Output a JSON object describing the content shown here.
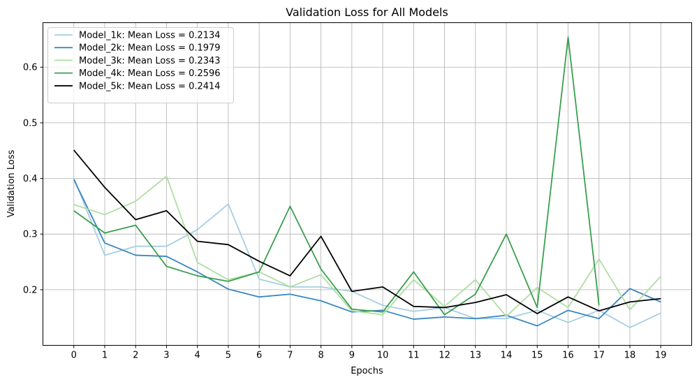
{
  "chart_data": {
    "type": "line",
    "title": "Validation Loss for All Models",
    "xlabel": "Epochs",
    "ylabel": "Validation Loss",
    "x": [
      0,
      1,
      2,
      3,
      4,
      5,
      6,
      7,
      8,
      9,
      10,
      11,
      12,
      13,
      14,
      15,
      16,
      17,
      18,
      19
    ],
    "xlim": [
      -1,
      20
    ],
    "ylim": [
      0.1,
      0.68
    ],
    "yticks": [
      0.2,
      0.3,
      0.4,
      0.5,
      0.6
    ],
    "ytick_labels": [
      "0.2",
      "0.3",
      "0.4",
      "0.5",
      "0.6"
    ],
    "grid": true,
    "legend_position": "top-left",
    "series": [
      {
        "name": "Model_1k: Mean Loss = 0.2134",
        "color": "#a6cee3",
        "values": [
          0.401,
          0.262,
          0.278,
          0.278,
          0.308,
          0.354,
          0.219,
          0.205,
          0.205,
          0.197,
          0.172,
          0.161,
          0.168,
          0.148,
          0.148,
          0.163,
          0.141,
          0.163,
          0.132,
          0.158
        ]
      },
      {
        "name": "Model_2k: Mean Loss = 0.1979",
        "color": "#3a87c0",
        "values": [
          0.398,
          0.284,
          0.262,
          0.26,
          0.232,
          0.201,
          0.187,
          0.192,
          0.18,
          0.16,
          0.163,
          0.147,
          0.151,
          0.148,
          0.154,
          0.135,
          0.163,
          0.148,
          0.202,
          0.178
        ]
      },
      {
        "name": "Model_3k: Mean Loss = 0.2343",
        "color": "#aedea2",
        "values": [
          0.353,
          0.335,
          0.359,
          0.404,
          0.249,
          0.218,
          0.232,
          0.205,
          0.227,
          0.162,
          0.155,
          0.218,
          0.17,
          0.218,
          0.152,
          0.204,
          0.168,
          0.255,
          0.164,
          0.224
        ]
      },
      {
        "name": "Model_4k: Mean Loss = 0.2596",
        "color": "#3a9f4e",
        "values": [
          0.342,
          0.302,
          0.316,
          0.242,
          0.225,
          0.215,
          0.232,
          0.35,
          0.237,
          0.165,
          0.16,
          0.232,
          0.155,
          0.192,
          0.3,
          0.168,
          0.654,
          0.172,
          null,
          null
        ]
      },
      {
        "name": "Model_5k: Mean Loss = 0.2414",
        "color": "#000000",
        "values": [
          0.451,
          0.384,
          0.326,
          0.342,
          0.287,
          0.281,
          0.251,
          0.225,
          0.296,
          0.197,
          0.205,
          0.17,
          0.168,
          0.177,
          0.191,
          0.157,
          0.187,
          0.162,
          0.178,
          0.184
        ]
      }
    ]
  }
}
